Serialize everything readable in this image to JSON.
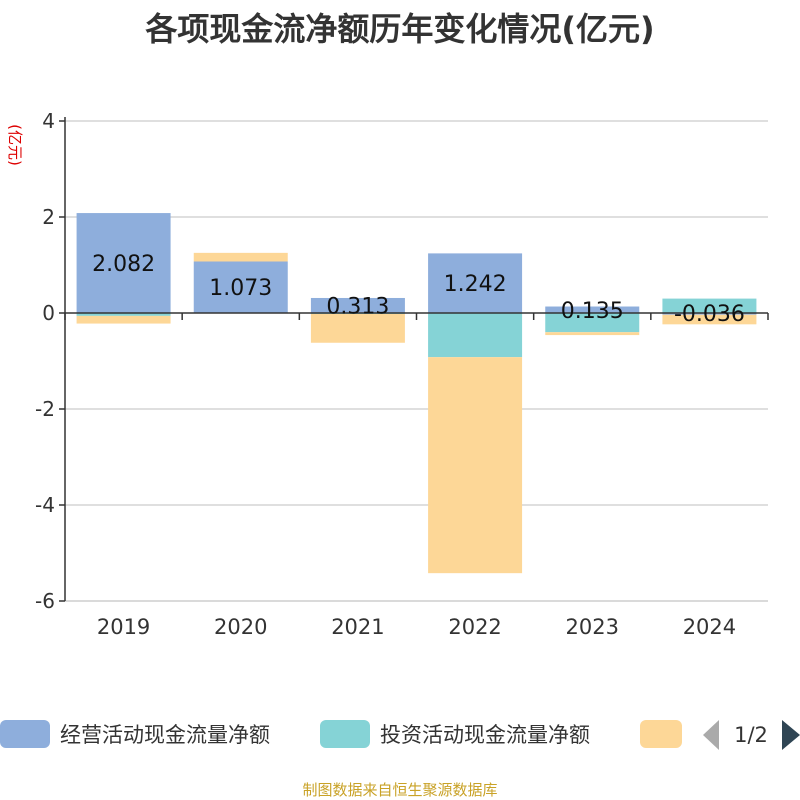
{
  "chart_data": {
    "type": "bar",
    "stacked": true,
    "title": "各项现金流净额历年变化情况(亿元)",
    "ylabel": "(亿元)",
    "xlabel": "",
    "ylim": [
      -6,
      4
    ],
    "yticks": [
      4,
      2,
      0,
      -2,
      -4,
      -6
    ],
    "grid": true,
    "categories": [
      "2019",
      "2020",
      "2021",
      "2022",
      "2023",
      "2024"
    ],
    "series": [
      {
        "name": "经营活动现金流量净额",
        "color": "#8eaedc",
        "values": [
          2.082,
          1.073,
          0.313,
          1.242,
          0.135,
          -0.036
        ]
      },
      {
        "name": "投资活动现金流量净额",
        "color": "#85d3d6",
        "values": [
          -0.06,
          0.0,
          -0.02,
          -0.92,
          -0.4,
          0.3
        ]
      },
      {
        "name": "",
        "color": "#fdd797",
        "values": [
          -0.16,
          0.18,
          -0.6,
          -4.5,
          -0.06,
          -0.2
        ]
      }
    ],
    "data_labels": [
      "2.082",
      "1.073",
      "0.313",
      "1.242",
      "0.135",
      "-0.036"
    ],
    "legend": {
      "position": "bottom",
      "page": "1/2"
    }
  },
  "source": "制图数据来自恒生聚源数据库"
}
